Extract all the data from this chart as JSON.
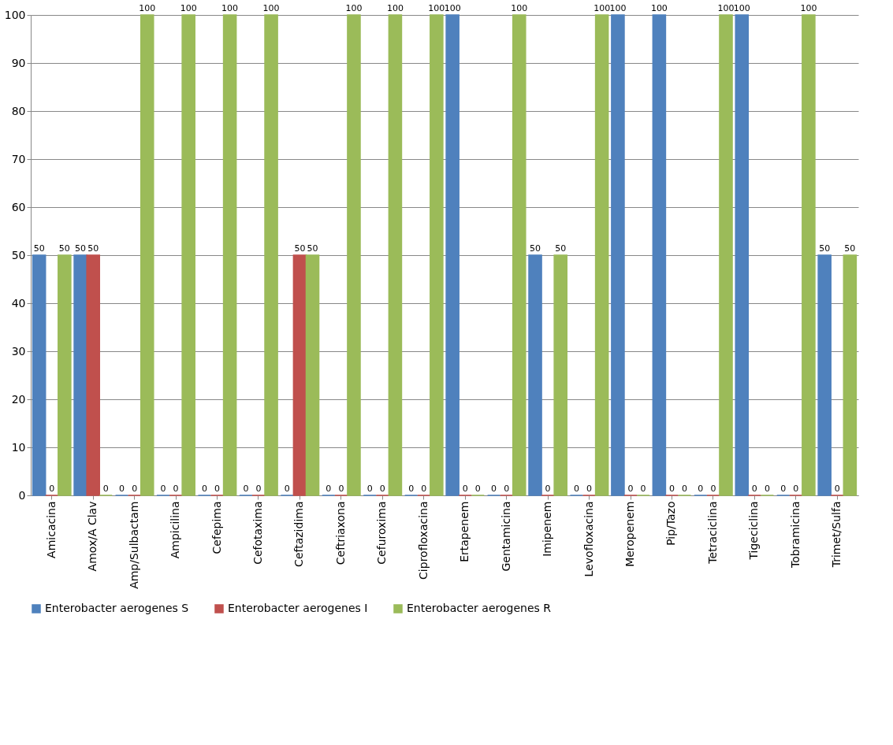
{
  "chart_data": {
    "type": "bar",
    "categories": [
      "Amicacina",
      "Amox/A Clav",
      "Amp/Sulbactam",
      "Ampicilina",
      "Cefepima",
      "Cefotaxima",
      "Ceftazidima",
      "Ceftriaxona",
      "Cefuroxima",
      "Ciprofloxacina",
      "Ertapenem",
      "Gentamicina",
      "Imipenem",
      "Levofloxacina",
      "Meropenem",
      "Pip/Tazo",
      "Tetraciclina",
      "Tigeciclina",
      "Tobramicina",
      "Trimet/Sulfa"
    ],
    "series": [
      {
        "name": "Enterobacter aerogenes S",
        "color": "#4f81bd",
        "values": [
          50,
          50,
          0,
          0,
          0,
          0,
          0,
          0,
          0,
          0,
          100,
          0,
          50,
          0,
          100,
          100,
          0,
          100,
          0,
          50
        ]
      },
      {
        "name": "Enterobacter aerogenes I",
        "color": "#c0504d",
        "values": [
          0,
          50,
          0,
          0,
          0,
          0,
          50,
          0,
          0,
          0,
          0,
          0,
          0,
          0,
          0,
          0,
          0,
          0,
          0,
          0
        ]
      },
      {
        "name": "Enterobacter aerogenes R",
        "color": "#9bbb59",
        "values": [
          50,
          0,
          100,
          100,
          100,
          100,
          50,
          100,
          100,
          100,
          0,
          100,
          50,
          100,
          0,
          0,
          100,
          0,
          100,
          50
        ]
      }
    ],
    "ylim": [
      0,
      100
    ],
    "yticks": [
      0,
      10,
      20,
      30,
      40,
      50,
      60,
      70,
      80,
      90,
      100
    ],
    "grid": "y",
    "legend": "bottom",
    "data_labels": true
  }
}
